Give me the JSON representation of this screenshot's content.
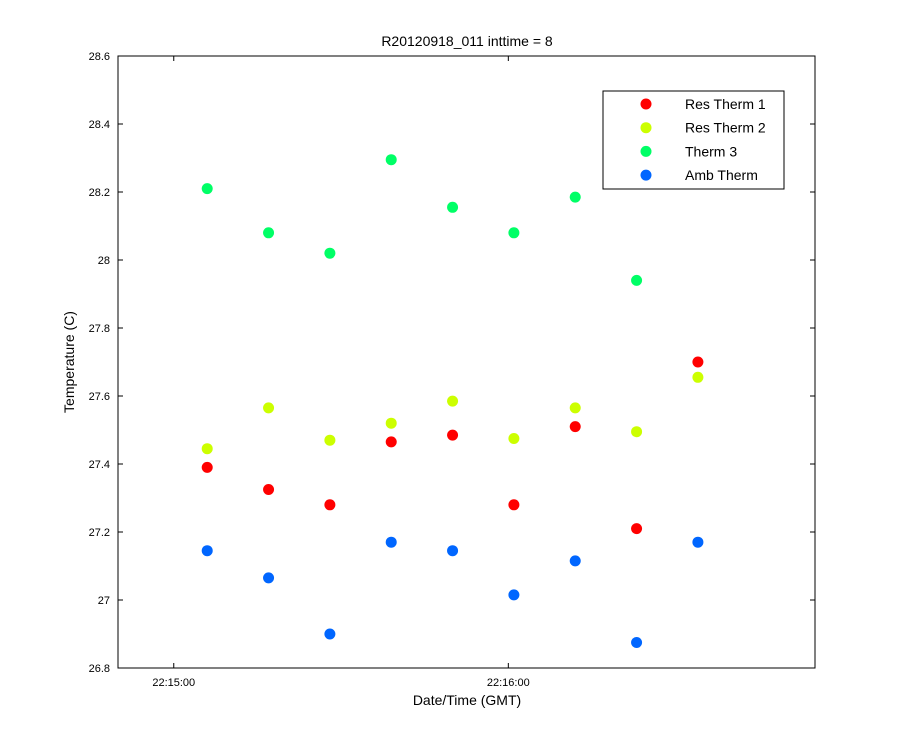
{
  "chart_data": {
    "type": "scatter",
    "title": "R20120918_011 inttime = 8",
    "xlabel": "Date/Time (GMT)",
    "ylabel": "Temperature (C)",
    "xlim": [
      "22:14:50",
      "22:16:55"
    ],
    "ylim": [
      26.8,
      28.6
    ],
    "x_ticks": [
      "22:15:00",
      "22:16:00"
    ],
    "y_ticks": [
      "26.8",
      "27",
      "27.2",
      "27.4",
      "27.6",
      "27.8",
      "28",
      "28.2",
      "28.4",
      "28.6"
    ],
    "grid": false,
    "legend_position": "top-right",
    "x": [
      "22:15:06",
      "22:15:17",
      "22:15:28",
      "22:15:39",
      "22:15:50",
      "22:16:01",
      "22:16:12",
      "22:16:23",
      "22:16:34"
    ],
    "series": [
      {
        "name": "Res Therm 1",
        "color": "#ff0000",
        "values": [
          27.39,
          27.325,
          27.28,
          27.465,
          27.485,
          27.28,
          27.51,
          27.21,
          27.7
        ]
      },
      {
        "name": "Res Therm 2",
        "color": "#ccff00",
        "values": [
          27.445,
          27.565,
          27.47,
          27.52,
          27.585,
          27.475,
          27.565,
          27.495,
          27.655
        ]
      },
      {
        "name": "Therm 3",
        "color": "#00ff66",
        "values": [
          28.21,
          28.08,
          28.02,
          28.295,
          28.155,
          28.08,
          28.185,
          27.94,
          null
        ]
      },
      {
        "name": "Amb Therm",
        "color": "#0066ff",
        "values": [
          27.145,
          27.065,
          26.9,
          27.17,
          27.145,
          27.015,
          27.115,
          26.875,
          27.17
        ]
      }
    ]
  }
}
